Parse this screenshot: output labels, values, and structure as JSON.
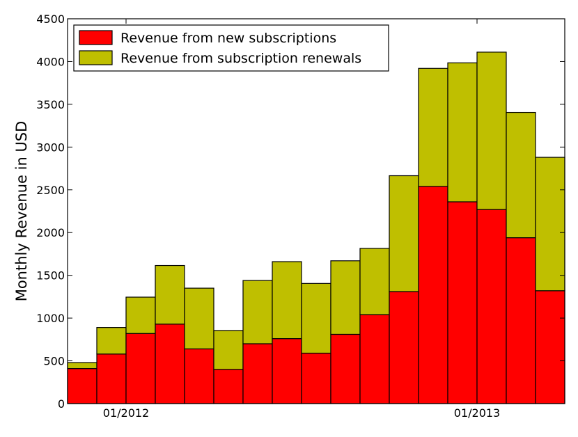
{
  "chart_data": {
    "type": "bar",
    "stacked": true,
    "title": "",
    "xlabel": "",
    "ylabel": "Monthly Revenue in USD",
    "ylim": [
      0,
      4500
    ],
    "yticks": [
      0,
      500,
      1000,
      1500,
      2000,
      2500,
      3000,
      3500,
      4000,
      4500
    ],
    "x_tick_labels": [
      "01/2012",
      "01/2013"
    ],
    "x_tick_positions": [
      2,
      14
    ],
    "categories": [
      "",
      "",
      "",
      "",
      "",
      "",
      "",
      "",
      "",
      "",
      "",
      "",
      "",
      "",
      "",
      "",
      ""
    ],
    "legend_position": "top-left",
    "grid": false,
    "series": [
      {
        "name": "Revenue from new subscriptions",
        "color": "#ff0000",
        "values": [
          410,
          580,
          820,
          930,
          640,
          400,
          700,
          760,
          590,
          810,
          1040,
          1310,
          2540,
          2360,
          2270,
          1940,
          1320
        ]
      },
      {
        "name": "Revenue from subscription renewals",
        "color": "#bfbf00",
        "values": [
          70,
          310,
          425,
          685,
          710,
          455,
          740,
          900,
          815,
          860,
          775,
          1355,
          1380,
          1625,
          1840,
          1465,
          1560
        ]
      }
    ]
  }
}
